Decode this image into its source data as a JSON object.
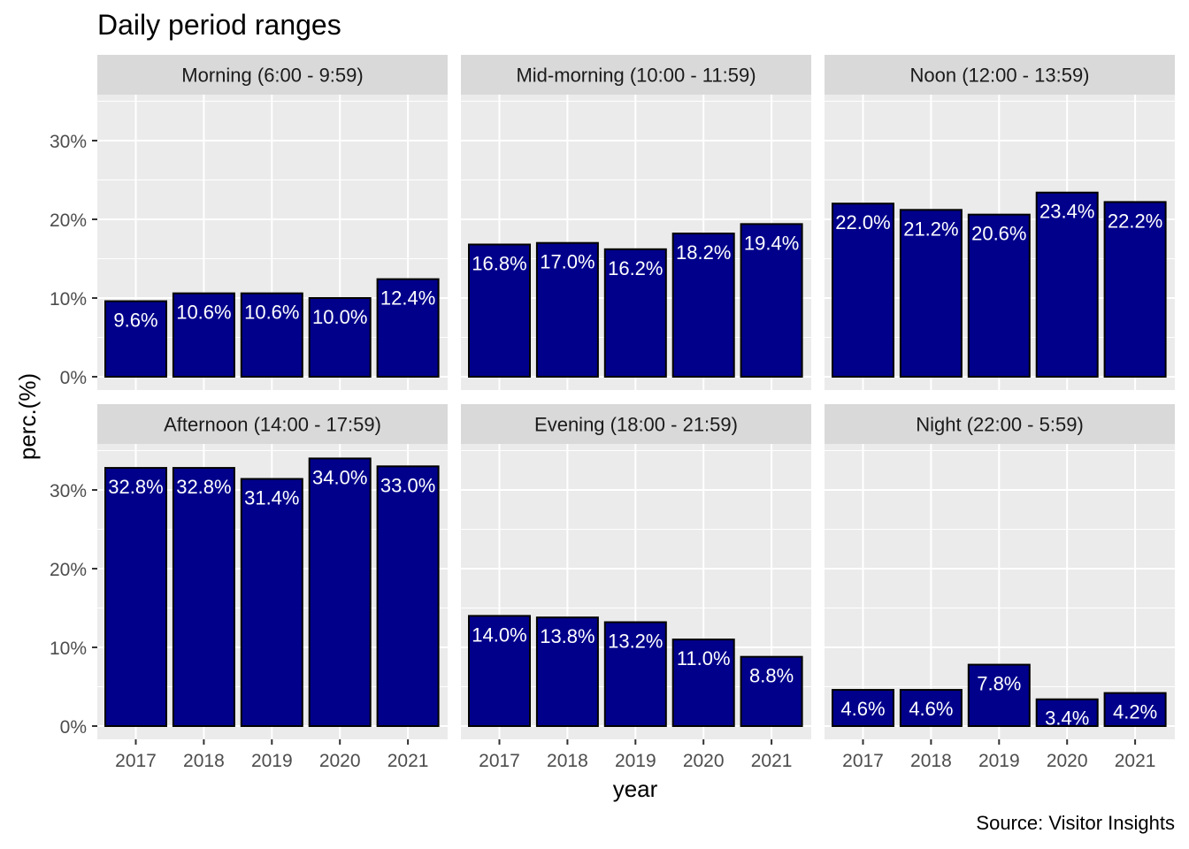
{
  "title": "Daily period ranges",
  "caption": "Source: Visitor Insights",
  "colors": {
    "bar_fill": "#00008B",
    "bar_stroke": "#000000",
    "panel_bg": "#EBEBEB",
    "strip_bg": "#D9D9D9",
    "grid": "#FFFFFF",
    "label_text": "#FFFFFF"
  },
  "chart_data": {
    "type": "bar",
    "faceted": true,
    "xlabel": "year",
    "ylabel": "perc.(%)",
    "ylim": [
      0,
      35
    ],
    "y_ticks": [
      "0%",
      "10%",
      "20%",
      "30%"
    ],
    "y_tick_values": [
      0,
      10,
      20,
      30
    ],
    "categories": [
      "2017",
      "2018",
      "2019",
      "2020",
      "2021"
    ],
    "grid": true,
    "panels": [
      {
        "name": "Morning (6:00 - 9:59)",
        "values": [
          9.6,
          10.6,
          10.6,
          10.0,
          12.4
        ],
        "labels": [
          "9.6%",
          "10.6%",
          "10.6%",
          "10.0%",
          "12.4%"
        ]
      },
      {
        "name": "Mid-morning (10:00 - 11:59)",
        "values": [
          16.8,
          17.0,
          16.2,
          18.2,
          19.4
        ],
        "labels": [
          "16.8%",
          "17.0%",
          "16.2%",
          "18.2%",
          "19.4%"
        ]
      },
      {
        "name": "Noon (12:00 - 13:59)",
        "values": [
          22.0,
          21.2,
          20.6,
          23.4,
          22.2
        ],
        "labels": [
          "22.0%",
          "21.2%",
          "20.6%",
          "23.4%",
          "22.2%"
        ]
      },
      {
        "name": "Afternoon (14:00 - 17:59)",
        "values": [
          32.8,
          32.8,
          31.4,
          34.0,
          33.0
        ],
        "labels": [
          "32.8%",
          "32.8%",
          "31.4%",
          "34.0%",
          "33.0%"
        ]
      },
      {
        "name": "Evening (18:00 - 21:59)",
        "values": [
          14.0,
          13.8,
          13.2,
          11.0,
          8.8
        ],
        "labels": [
          "14.0%",
          "13.8%",
          "13.2%",
          "11.0%",
          "8.8%"
        ]
      },
      {
        "name": "Night (22:00 - 5:59)",
        "values": [
          4.6,
          4.6,
          7.8,
          3.4,
          4.2
        ],
        "labels": [
          "4.6%",
          "4.6%",
          "7.8%",
          "3.4%",
          "4.2%"
        ]
      }
    ]
  }
}
